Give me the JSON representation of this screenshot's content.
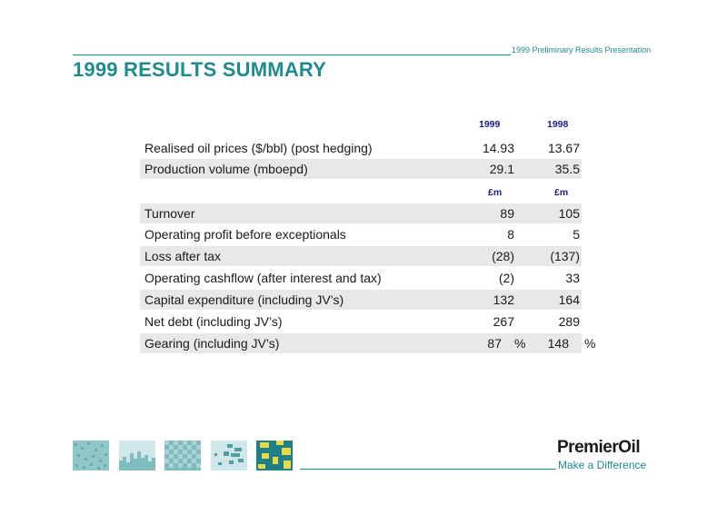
{
  "header": {
    "caption": "1999 Preliminary Results Presentation",
    "title": "1999 RESULTS SUMMARY"
  },
  "table": {
    "year_headers": [
      "1999",
      "1998"
    ],
    "unit_headers": [
      "£m",
      "£m"
    ],
    "rows_top": [
      {
        "label": "Realised oil prices ($/bbl) (post hedging)",
        "v1999": "14.93",
        "v1998": "13.67",
        "shaded": false
      },
      {
        "label": "Production volume (mboepd)",
        "v1999": "29.1",
        "v1998": "35.5",
        "shaded": true
      }
    ],
    "rows_bottom": [
      {
        "label": "Turnover",
        "v1999": "89",
        "v1998": "105",
        "shaded": true
      },
      {
        "label": "Operating profit before exceptionals",
        "v1999": "8",
        "v1998": "5",
        "shaded": false
      },
      {
        "label": "Loss after tax",
        "v1999": "(28)",
        "v1998": "(137)",
        "shaded": true
      },
      {
        "label": "Operating cashflow (after interest and tax)",
        "v1999": "(2)",
        "v1998": "33",
        "shaded": false
      },
      {
        "label": "Capital expenditure (including JV’s)",
        "v1999": "132",
        "v1998": "164",
        "shaded": true
      },
      {
        "label": "Net debt (including JV’s)",
        "v1999": "267",
        "v1998": "289",
        "shaded": false
      },
      {
        "label": "Gearing (including JV’s)",
        "v1999": "87",
        "v1998": "148",
        "unit": "%",
        "shaded": true
      }
    ]
  },
  "footer": {
    "brand": "PremierOil",
    "tagline": "Make a Difference"
  },
  "colors": {
    "accent": "#1f8a8f",
    "header_blue": "#1a1a8c",
    "shade": "#e8e8e8"
  }
}
